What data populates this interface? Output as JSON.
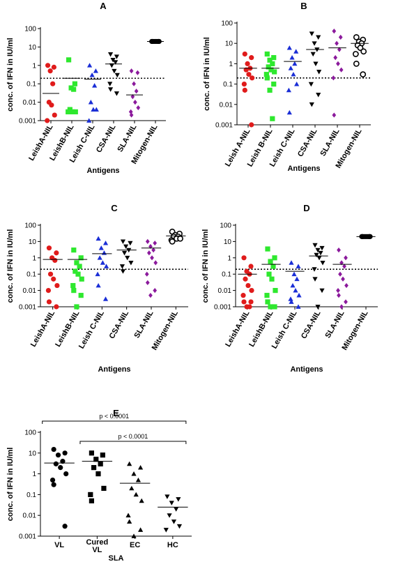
{
  "chart_data": [
    {
      "type": "strip",
      "title": "A",
      "x_label": "Antigens",
      "y_label": "conc. of IFN in IU/ml",
      "log_scale": true,
      "ylim": [
        0.001,
        100
      ],
      "yticks": [
        0.001,
        0.01,
        0.1,
        1,
        10,
        100
      ],
      "threshold": 0.2,
      "categories": [
        "LeishA-NIL",
        "LeishB-NIL",
        "Leish C-NIL",
        "CSA-NIL",
        "SLA-NIL",
        "Mitogen-NIL"
      ],
      "colors": [
        "#e01b1b",
        "#2ee82e",
        "#1a2ed6",
        "#000000",
        "#8b1a9c",
        "#000000"
      ],
      "markers": [
        "circle",
        "square",
        "triangle",
        "triangle-down",
        "diamond",
        "circle"
      ],
      "points": [
        [
          1.0,
          0.8,
          0.5,
          0.1,
          0.01,
          0.007,
          0.002,
          0.001
        ],
        [
          2,
          0.1,
          0.06,
          0.05,
          0.004,
          0.003,
          0.003,
          0.003
        ],
        [
          1,
          0.5,
          0.3,
          0.08,
          0.01,
          0.004,
          0.004,
          0.001
        ],
        [
          4,
          3,
          2,
          1.5,
          1,
          0.5,
          0.3,
          0.1,
          0.05,
          0.03
        ],
        [
          0.5,
          0.4,
          0.1,
          0.04,
          0.02,
          0.01,
          0.005,
          0.003,
          0.002
        ],
        [
          20,
          20,
          20,
          20,
          20,
          20,
          20,
          20,
          20,
          20
        ]
      ],
      "medians": [
        0.03,
        0.2,
        0.18,
        1.2,
        0.025,
        20
      ]
    },
    {
      "type": "strip",
      "title": "B",
      "x_label": "Antigens",
      "y_label": "conc. of IFN in IU/ml",
      "log_scale": true,
      "ylim": [
        0.001,
        100
      ],
      "yticks": [
        0.001,
        0.01,
        0.1,
        1,
        10,
        100
      ],
      "threshold": 0.2,
      "categories": [
        "Leish A-NIL",
        "Leish B-NIL",
        "Leish C-NIL",
        "CSA-NIL",
        "SLA-NIL",
        "Mitogen-NIL"
      ],
      "colors": [
        "#e01b1b",
        "#2ee82e",
        "#1a2ed6",
        "#000000",
        "#8b1a9c",
        "#000000"
      ],
      "markers": [
        "circle",
        "square",
        "triangle",
        "triangle-down",
        "diamond",
        "open-circle"
      ],
      "points": [
        [
          3,
          2,
          1,
          0.6,
          0.5,
          0.3,
          0.2,
          0.1,
          0.05,
          0.001
        ],
        [
          3,
          2,
          1.5,
          1,
          0.7,
          0.5,
          0.4,
          0.3,
          0.2,
          0.1,
          0.05,
          0.002
        ],
        [
          6,
          4,
          2,
          1,
          0.6,
          0.3,
          0.1,
          0.05,
          0.004
        ],
        [
          30,
          20,
          10,
          5,
          3,
          1,
          0.4,
          0.1,
          0.01,
          0.03
        ],
        [
          40,
          20,
          10,
          5,
          2,
          1,
          0.5,
          0.2,
          0.003
        ],
        [
          20,
          15,
          12,
          10,
          8,
          6,
          4,
          3,
          1,
          0.3
        ]
      ],
      "medians": [
        0.6,
        0.6,
        1.3,
        5,
        6,
        10
      ]
    },
    {
      "type": "strip",
      "title": "C",
      "x_label": "Antigens",
      "y_label": "conc. of IFN in IU/ml",
      "log_scale": true,
      "ylim": [
        0.001,
        100
      ],
      "yticks": [
        0.001,
        0.01,
        0.1,
        1,
        10,
        100
      ],
      "threshold": 0.2,
      "categories": [
        "LeishA-NIL",
        "LeishB-NIL",
        "Leish C-NIL",
        "CSA-NIL",
        "SLA-NIL",
        "Mitogen-NIL"
      ],
      "colors": [
        "#e01b1b",
        "#2ee82e",
        "#1a2ed6",
        "#000000",
        "#8b1a9c",
        "#000000"
      ],
      "markers": [
        "circle",
        "square",
        "triangle",
        "triangle-down",
        "diamond",
        "open-circle"
      ],
      "points": [
        [
          4,
          2,
          1,
          0.7,
          0.1,
          0.05,
          0.02,
          0.01,
          0.002,
          0.001
        ],
        [
          3,
          1,
          0.5,
          0.3,
          0.15,
          0.1,
          0.05,
          0.02,
          0.01,
          0.005,
          0.001
        ],
        [
          15,
          8,
          4,
          2,
          1,
          0.5,
          0.3,
          0.1,
          0.02,
          0.003
        ],
        [
          10,
          8,
          5,
          3,
          2,
          1,
          0.5,
          0.3,
          0.15
        ],
        [
          10,
          8,
          5,
          3,
          2,
          1,
          0.5,
          0.1,
          0.03,
          0.01,
          0.005
        ],
        [
          40,
          30,
          25,
          20,
          20,
          15,
          15,
          12,
          10
        ]
      ],
      "medians": [
        0.8,
        0.8,
        1.8,
        3,
        4,
        22
      ]
    },
    {
      "type": "strip",
      "title": "D",
      "x_label": "Antigens",
      "y_label": "conc. of IFN in IU/ml",
      "log_scale": true,
      "ylim": [
        0.001,
        100
      ],
      "yticks": [
        0.001,
        0.01,
        0.1,
        1,
        10,
        100
      ],
      "threshold": 0.2,
      "categories": [
        "LeishA-NIL",
        "LeishB-NIL",
        "Leish C-NIL",
        "CSA-NIL",
        "SLA-NIL",
        "Mitogen-NIL"
      ],
      "colors": [
        "#e01b1b",
        "#2ee82e",
        "#1a2ed6",
        "#000000",
        "#8b1a9c",
        "#000000"
      ],
      "markers": [
        "circle",
        "square",
        "triangle",
        "triangle-down",
        "diamond",
        "circle"
      ],
      "points": [
        [
          1,
          0.3,
          0.15,
          0.1,
          0.05,
          0.02,
          0.01,
          0.005,
          0.002,
          0.002,
          0.001,
          0.001
        ],
        [
          3.5,
          1,
          0.6,
          0.3,
          0.1,
          0.05,
          0.01,
          0.005,
          0.002,
          0.001,
          0.001
        ],
        [
          0.5,
          0.3,
          0.1,
          0.05,
          0.02,
          0.01,
          0.005,
          0.003,
          0.002,
          0.001
        ],
        [
          6,
          4,
          3,
          2,
          1.5,
          1,
          0.5,
          0.2,
          0.05,
          0.01,
          0.001
        ],
        [
          3,
          1,
          0.5,
          0.3,
          0.1,
          0.05,
          0.02,
          0.01,
          0.005,
          0.002,
          0.001
        ],
        [
          20,
          20,
          20,
          20,
          20,
          20,
          20,
          20,
          20,
          20
        ]
      ],
      "medians": [
        0.1,
        0.4,
        0.15,
        1.3,
        0.4,
        20
      ]
    },
    {
      "type": "strip",
      "title": "E",
      "x_label": "SLA",
      "y_label": "conc. of IFN in IU/ml",
      "log_scale": true,
      "ylim": [
        0.001,
        100
      ],
      "yticks": [
        0.001,
        0.01,
        0.1,
        1,
        10,
        100
      ],
      "categories": [
        "VL",
        "Cured VL",
        "EC",
        "HC"
      ],
      "colors": [
        "#000000",
        "#000000",
        "#000000",
        "#000000"
      ],
      "markers": [
        "circle",
        "square",
        "triangle",
        "triangle-down"
      ],
      "points": [
        [
          15,
          10,
          8,
          4,
          3,
          2,
          1,
          0.5,
          0.3,
          0.003
        ],
        [
          10,
          8,
          5,
          3,
          2,
          1,
          0.2,
          0.1,
          0.05
        ],
        [
          3,
          2,
          1,
          0.5,
          0.2,
          0.1,
          0.05,
          0.01,
          0.005,
          0.002,
          0.001
        ],
        [
          0.08,
          0.06,
          0.04,
          0.02,
          0.01,
          0.005,
          0.003,
          0.002
        ]
      ],
      "medians": [
        3.3,
        4,
        0.35,
        0.025
      ],
      "annotations": [
        {
          "text": "p < 0.0001",
          "from": 0,
          "to": 3
        },
        {
          "text": "p < 0.0001",
          "from": 1,
          "to": 3
        }
      ]
    }
  ]
}
